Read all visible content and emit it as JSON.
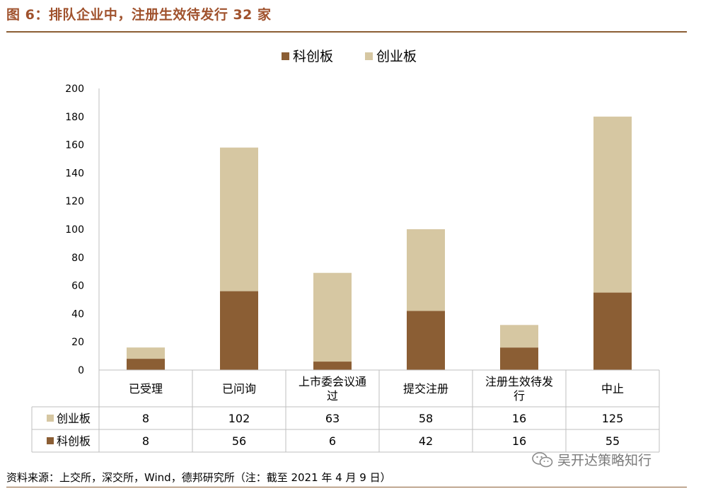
{
  "title": "图 6：排队企业中，注册生效待发行 32 家",
  "source": "资料来源：上交所，深交所，Wind，德邦研究所（注：截至 2021 年 4 月 9 日）",
  "watermark": "吴开达策略知行",
  "colors": {
    "kechuang": "#8B5E34",
    "chuangye": "#D6C7A2",
    "title": "#A0522D"
  },
  "chart_data": {
    "type": "bar",
    "stacked": true,
    "categories": [
      "已受理",
      "已问询",
      "上市委会议通过",
      "提交注册",
      "注册生效待发行",
      "中止"
    ],
    "series": [
      {
        "name": "科创板",
        "values": [
          8,
          56,
          6,
          42,
          16,
          55
        ]
      },
      {
        "name": "创业板",
        "values": [
          8,
          102,
          63,
          58,
          16,
          125
        ]
      }
    ],
    "table_rows": [
      {
        "name": "创业板",
        "values": [
          "8",
          "102",
          "63",
          "58",
          "16",
          "125"
        ]
      },
      {
        "name": "科创板",
        "values": [
          "8",
          "56",
          "6",
          "42",
          "16",
          "55"
        ]
      }
    ],
    "yticks": [
      "0",
      "20",
      "40",
      "60",
      "80",
      "100",
      "120",
      "140",
      "160",
      "180",
      "200"
    ],
    "ylim": [
      0,
      200
    ],
    "grid": false,
    "legend": "top-center"
  }
}
